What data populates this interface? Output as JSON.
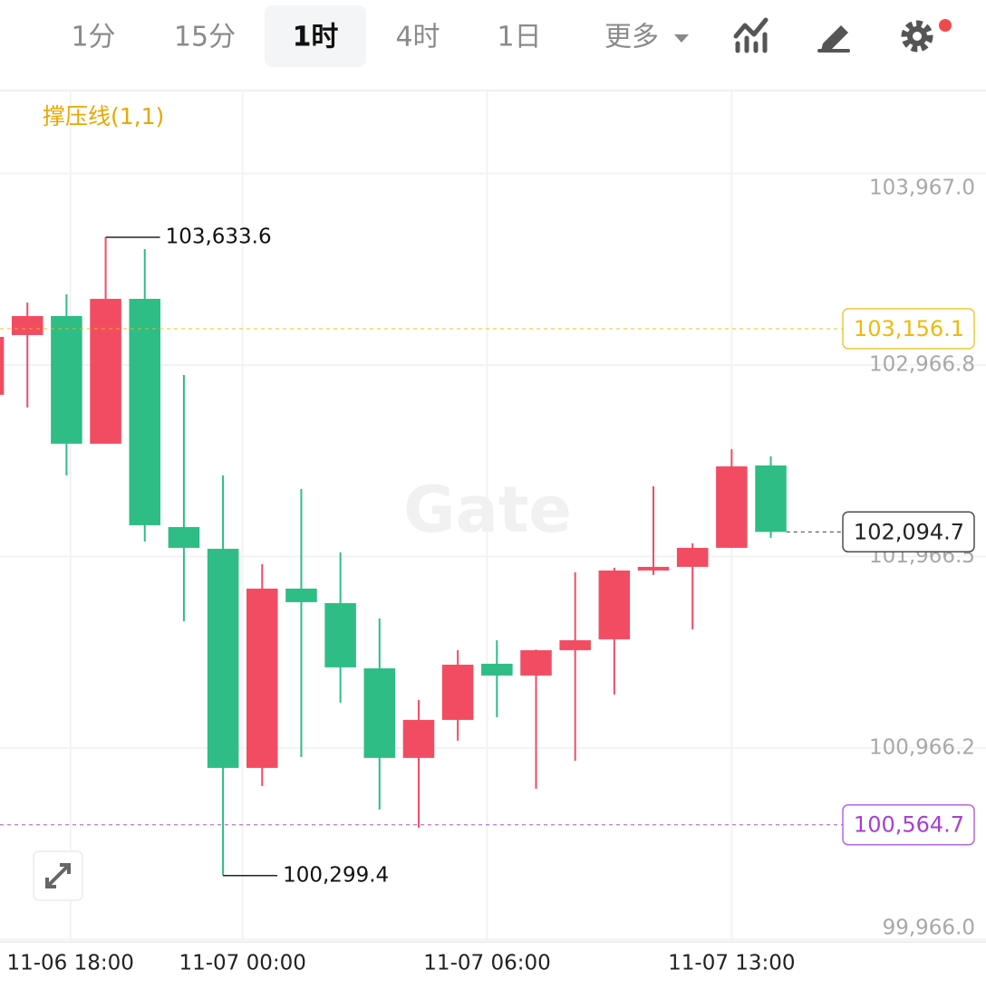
{
  "toolbar": {
    "tabs": [
      "1分",
      "15分",
      "1时",
      "4时",
      "1日",
      "更多"
    ],
    "active": 2
  },
  "chart_data": {
    "type": "candlestick",
    "indicator": "撑压线(1,1)",
    "watermark": "Gate",
    "categories": [
      null,
      null,
      null,
      null,
      null,
      null,
      null,
      null,
      null,
      null,
      null,
      null,
      null,
      null,
      null,
      null,
      null,
      null,
      null,
      null,
      null
    ],
    "open": [
      102810.7,
      103122.9,
      103222.2,
      102555.3,
      103312.1,
      102120.1,
      102006.6,
      100861.9,
      101798.5,
      101722.8,
      101382.2,
      100914.0,
      101112.6,
      101405.9,
      101344.4,
      101476.8,
      101533.6,
      101893.1,
      101912.0,
      102011.3,
      102441.8
    ],
    "high": [
      103160.7,
      103293.2,
      103335.7,
      103633.6,
      103572.2,
      102914.8,
      102389.7,
      101926.2,
      102318.8,
      101987.7,
      101642.4,
      101216.7,
      101476.8,
      101528.9,
      101480.0,
      101883.6,
      101907.3,
      102333.0,
      102035.0,
      102526.9,
      102489.1
    ],
    "low": [
      102810.7,
      102744.5,
      102389.7,
      102555.3,
      102044.4,
      101628.2,
      100299.4,
      100767.3,
      100918.7,
      101202.5,
      100644.4,
      100549.8,
      101003.8,
      101126.8,
      100753.2,
      100899.8,
      101245.1,
      101869.4,
      101585.6,
      102011.3,
      102063.4
    ],
    "close": [
      103113.4,
      103222.2,
      102555.3,
      103312.1,
      102129.6,
      102011.3,
      100861.9,
      101798.5,
      101727.5,
      101387.0,
      100914.0,
      101112.6,
      101401.2,
      101344.4,
      101476.8,
      101528.9,
      101893.1,
      101912.0,
      102011.3,
      102437.0,
      102094.7
    ],
    "high_labels": [
      null,
      null,
      null,
      "103,633.6",
      null,
      null,
      null,
      null,
      null,
      null,
      null,
      null,
      null,
      null,
      null,
      null,
      null,
      null,
      null,
      null,
      null
    ],
    "low_labels": [
      null,
      null,
      null,
      null,
      null,
      null,
      "100,299.4",
      null,
      null,
      null,
      null,
      null,
      null,
      null,
      null,
      null,
      null,
      null,
      null,
      null,
      null
    ],
    "up_color": "#f24c63",
    "down_color": "#2ebd85",
    "ylim": [
      99953,
      104400
    ],
    "yticks": [
      {
        "value": 99966.0,
        "label": "99,966.0"
      },
      {
        "value": 100966.2,
        "label": "100,966.2"
      },
      {
        "value": 101966.5,
        "label": "101,966.5"
      },
      {
        "value": 102966.8,
        "label": "102,966.8"
      },
      {
        "value": 103967.0,
        "label": "103,967.0"
      }
    ],
    "xlim": [
      0.3,
      25.5
    ],
    "xticks": [
      {
        "value": 2.1,
        "label": "11-06 18:00"
      },
      {
        "value": 6.5,
        "label": "11-07 00:00"
      },
      {
        "value": 12.75,
        "label": "11-07 06:00"
      },
      {
        "value": 19.0,
        "label": "11-07 13:00"
      }
    ],
    "grid": true,
    "price_lines": [
      {
        "value": 103156.1,
        "label": "103,156.1",
        "color": "#f0b90b"
      },
      {
        "value": 100564.7,
        "label": "100,564.7",
        "color": "#a83fd0"
      },
      {
        "value": 102094.7,
        "label": "102,094.7",
        "color": "#222222"
      }
    ]
  }
}
